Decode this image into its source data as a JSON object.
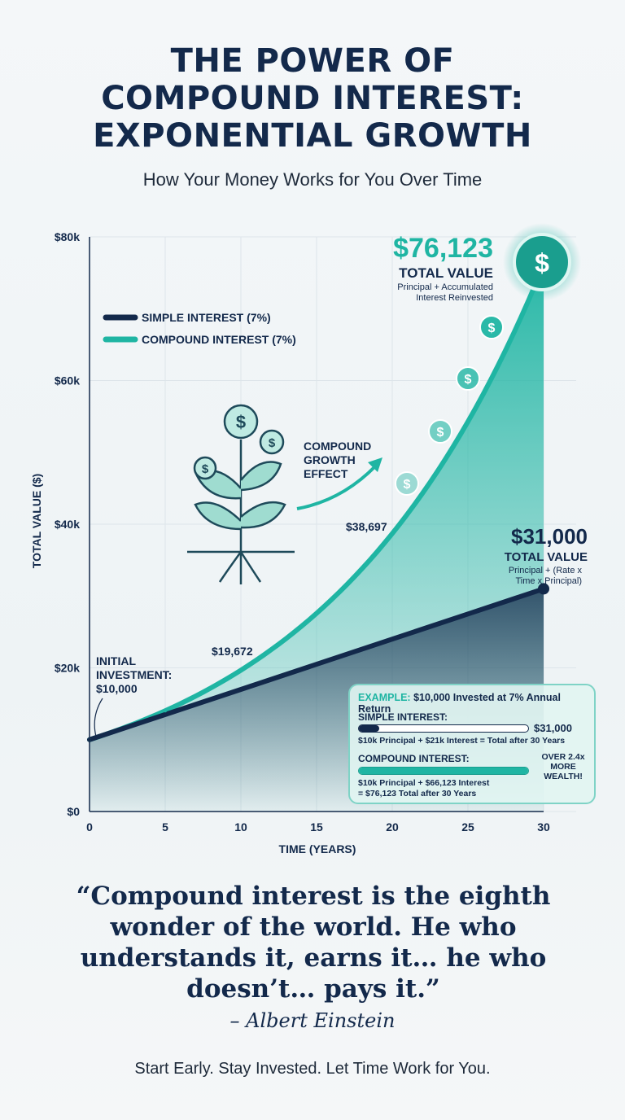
{
  "header": {
    "title_lines": [
      "THE POWER OF",
      "COMPOUND INTEREST:",
      "EXPONENTIAL GROWTH"
    ],
    "subtitle": "How Your Money Works for You Over Time"
  },
  "chart_data": {
    "type": "line",
    "xlabel": "TIME (YEARS)",
    "ylabel": "TOTAL VALUE ($)",
    "xlim": [
      0,
      30
    ],
    "ylim": [
      0,
      80000
    ],
    "x_ticks": [
      "0",
      "5",
      "10",
      "15",
      "20",
      "25",
      "30"
    ],
    "y_ticks": [
      "$0",
      "$20k",
      "$40k",
      "$60k",
      "$80k"
    ],
    "grid": true,
    "legend_placement": "top-left",
    "x": [
      0,
      5,
      10,
      15,
      20,
      25,
      30
    ],
    "series": [
      {
        "name": "SIMPLE INTEREST (7%)",
        "color": "#13294b",
        "values": [
          10000,
          13500,
          17000,
          20500,
          24000,
          27500,
          31000
        ]
      },
      {
        "name": "COMPOUND INTEREST (7%)",
        "color": "#1fb5a3",
        "values": [
          10000,
          14026,
          19672,
          27590,
          38697,
          54274,
          76123
        ]
      }
    ],
    "annotations": {
      "initial": [
        "INITIAL",
        "INVESTMENT:",
        "$10,000"
      ],
      "point10": "$19,672",
      "point20": "$38,697",
      "compound_total": "$76,123",
      "compound_total_label": "TOTAL VALUE",
      "compound_note": [
        "Principal + Accumulated",
        "Interest Reinvested"
      ],
      "simple_total": "$31,000",
      "simple_total_label": "TOTAL VALUE",
      "simple_note": [
        "Principal + (Rate x",
        "Time x Principal)"
      ],
      "growth_effect": [
        "COMPOUND",
        "GROWTH",
        "EFFECT"
      ]
    }
  },
  "example_box": {
    "prefix": "EXAMPLE:",
    "heading": "$10,000 Invested at 7% Annual Return",
    "simple_label": "SIMPLE INTEREST:",
    "simple_value": "$31,000",
    "simple_fill": 0.12,
    "simple_detail": "$10k Principal + $21k Interest = Total after 30 Years",
    "compound_label": "COMPOUND INTEREST:",
    "compound_fill": 1.0,
    "compound_detail": [
      "$10k Principal + $66,123 Interest",
      "= $76,123 Total after 30 Years"
    ],
    "callout": [
      "OVER 2.4x",
      "MORE",
      "WEALTH!"
    ]
  },
  "quote": {
    "text": "“Compound interest is the eighth wonder of the world.  He who understands it, earns it… he who doesn’t… pays it.”",
    "author": "– Albert Einstein"
  },
  "footer": "Start Early. Stay Invested. Let Time Work for You.",
  "colors": {
    "navy": "#13294b",
    "teal": "#1fb5a3"
  }
}
